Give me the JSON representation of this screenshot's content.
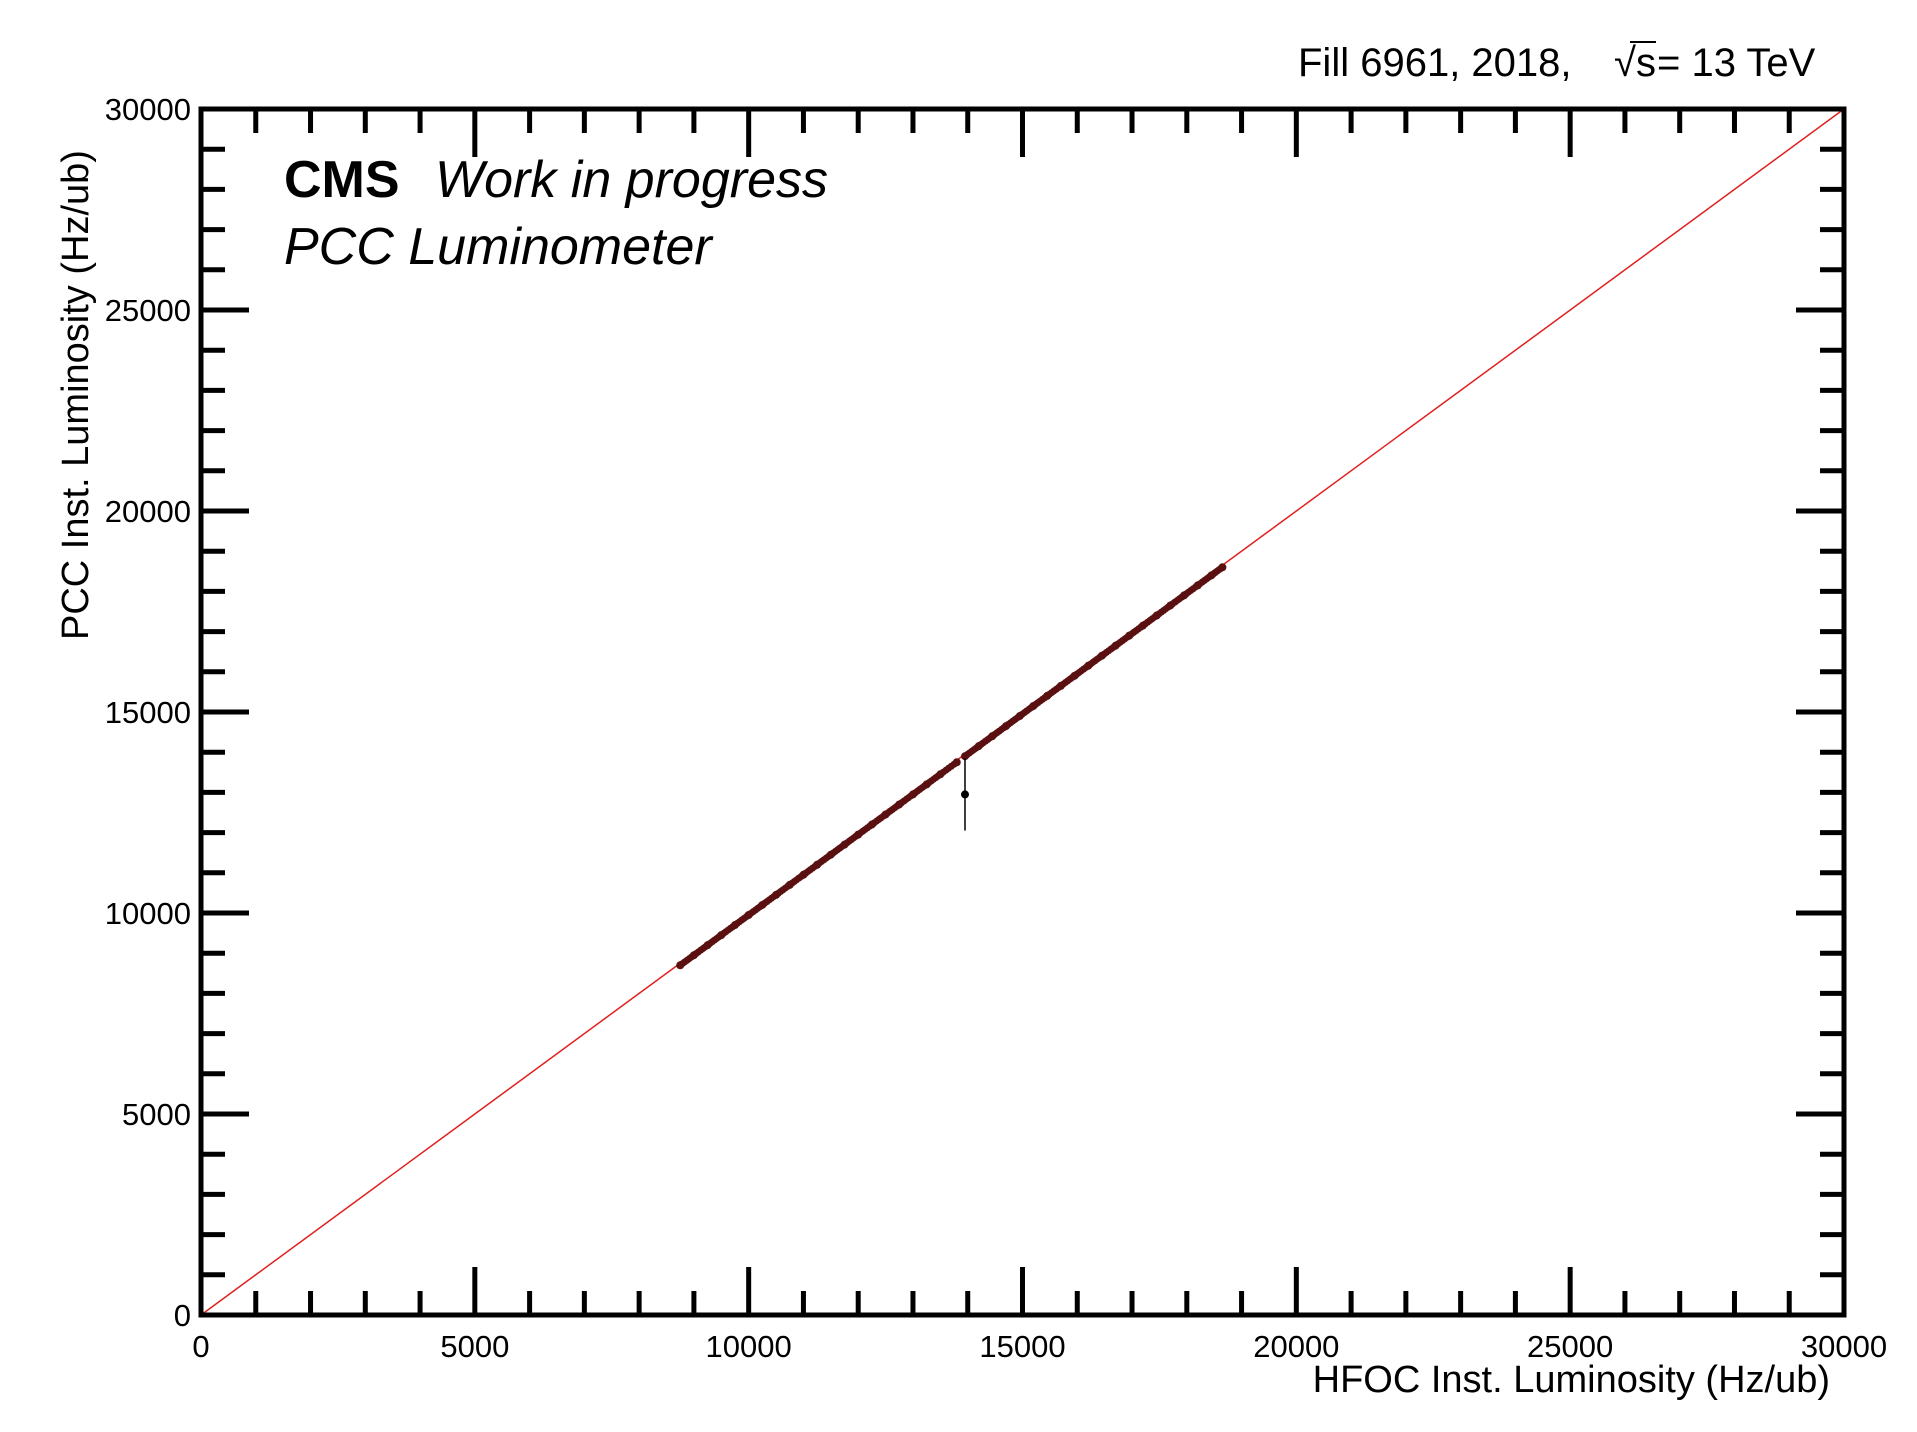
{
  "header": {
    "fill_label": "Fill 6961, 2018,",
    "energy_sqrt": "√s",
    "energy_label": " = 13 TeV"
  },
  "annotation": {
    "experiment": "CMS",
    "status": "Work in progress",
    "detector": "PCC Luminometer"
  },
  "chart_data": {
    "type": "scatter",
    "title": "",
    "xlabel": "HFOC Inst. Luminosity (Hz/ub)",
    "ylabel": "PCC Inst. Luminosity (Hz/ub)",
    "xlim": [
      0,
      30000
    ],
    "ylim": [
      0,
      30000
    ],
    "x_ticks": [
      0,
      5000,
      10000,
      15000,
      20000,
      25000,
      30000
    ],
    "y_ticks": [
      0,
      5000,
      10000,
      15000,
      20000,
      25000,
      30000
    ],
    "x_tick_labels": [
      "0",
      "5000",
      "10000",
      "15000",
      "20000",
      "25000",
      "30000"
    ],
    "y_tick_labels": [
      "0",
      "5000",
      "10000",
      "15000",
      "20000",
      "25000",
      "30000"
    ],
    "grid": false,
    "reference_line": {
      "label": "",
      "slope": 1,
      "intercept": 0,
      "color": "#e02020"
    },
    "point_color": "#5a1010",
    "series": [
      {
        "points": [
          [
            8750,
            8700
          ],
          [
            9000,
            8950
          ],
          [
            9250,
            9200
          ],
          [
            9500,
            9450
          ],
          [
            9750,
            9700
          ],
          [
            10000,
            9950
          ],
          [
            10250,
            10200
          ],
          [
            10500,
            10450
          ],
          [
            10750,
            10700
          ],
          [
            11000,
            10950
          ],
          [
            11250,
            11200
          ],
          [
            11500,
            11450
          ],
          [
            11750,
            11700
          ],
          [
            12000,
            11950
          ],
          [
            12250,
            12200
          ],
          [
            12500,
            12450
          ],
          [
            12750,
            12700
          ],
          [
            13000,
            12950
          ],
          [
            13250,
            13200
          ],
          [
            13500,
            13450
          ],
          [
            13800,
            13750
          ],
          [
            13950,
            13900
          ],
          [
            14200,
            14150
          ],
          [
            14450,
            14400
          ],
          [
            14700,
            14650
          ],
          [
            14950,
            14900
          ],
          [
            15200,
            15150
          ],
          [
            15450,
            15400
          ],
          [
            15700,
            15650
          ],
          [
            15950,
            15900
          ],
          [
            16200,
            16150
          ],
          [
            16450,
            16400
          ],
          [
            16700,
            16650
          ],
          [
            16950,
            16900
          ],
          [
            17200,
            17150
          ],
          [
            17450,
            17400
          ],
          [
            17700,
            17650
          ],
          [
            17950,
            17900
          ],
          [
            18200,
            18150
          ],
          [
            18450,
            18400
          ],
          [
            18650,
            18600
          ]
        ],
        "outlier": {
          "x": 13950,
          "y": 12950,
          "err_low": 12050,
          "err_high": 13850
        }
      }
    ]
  }
}
